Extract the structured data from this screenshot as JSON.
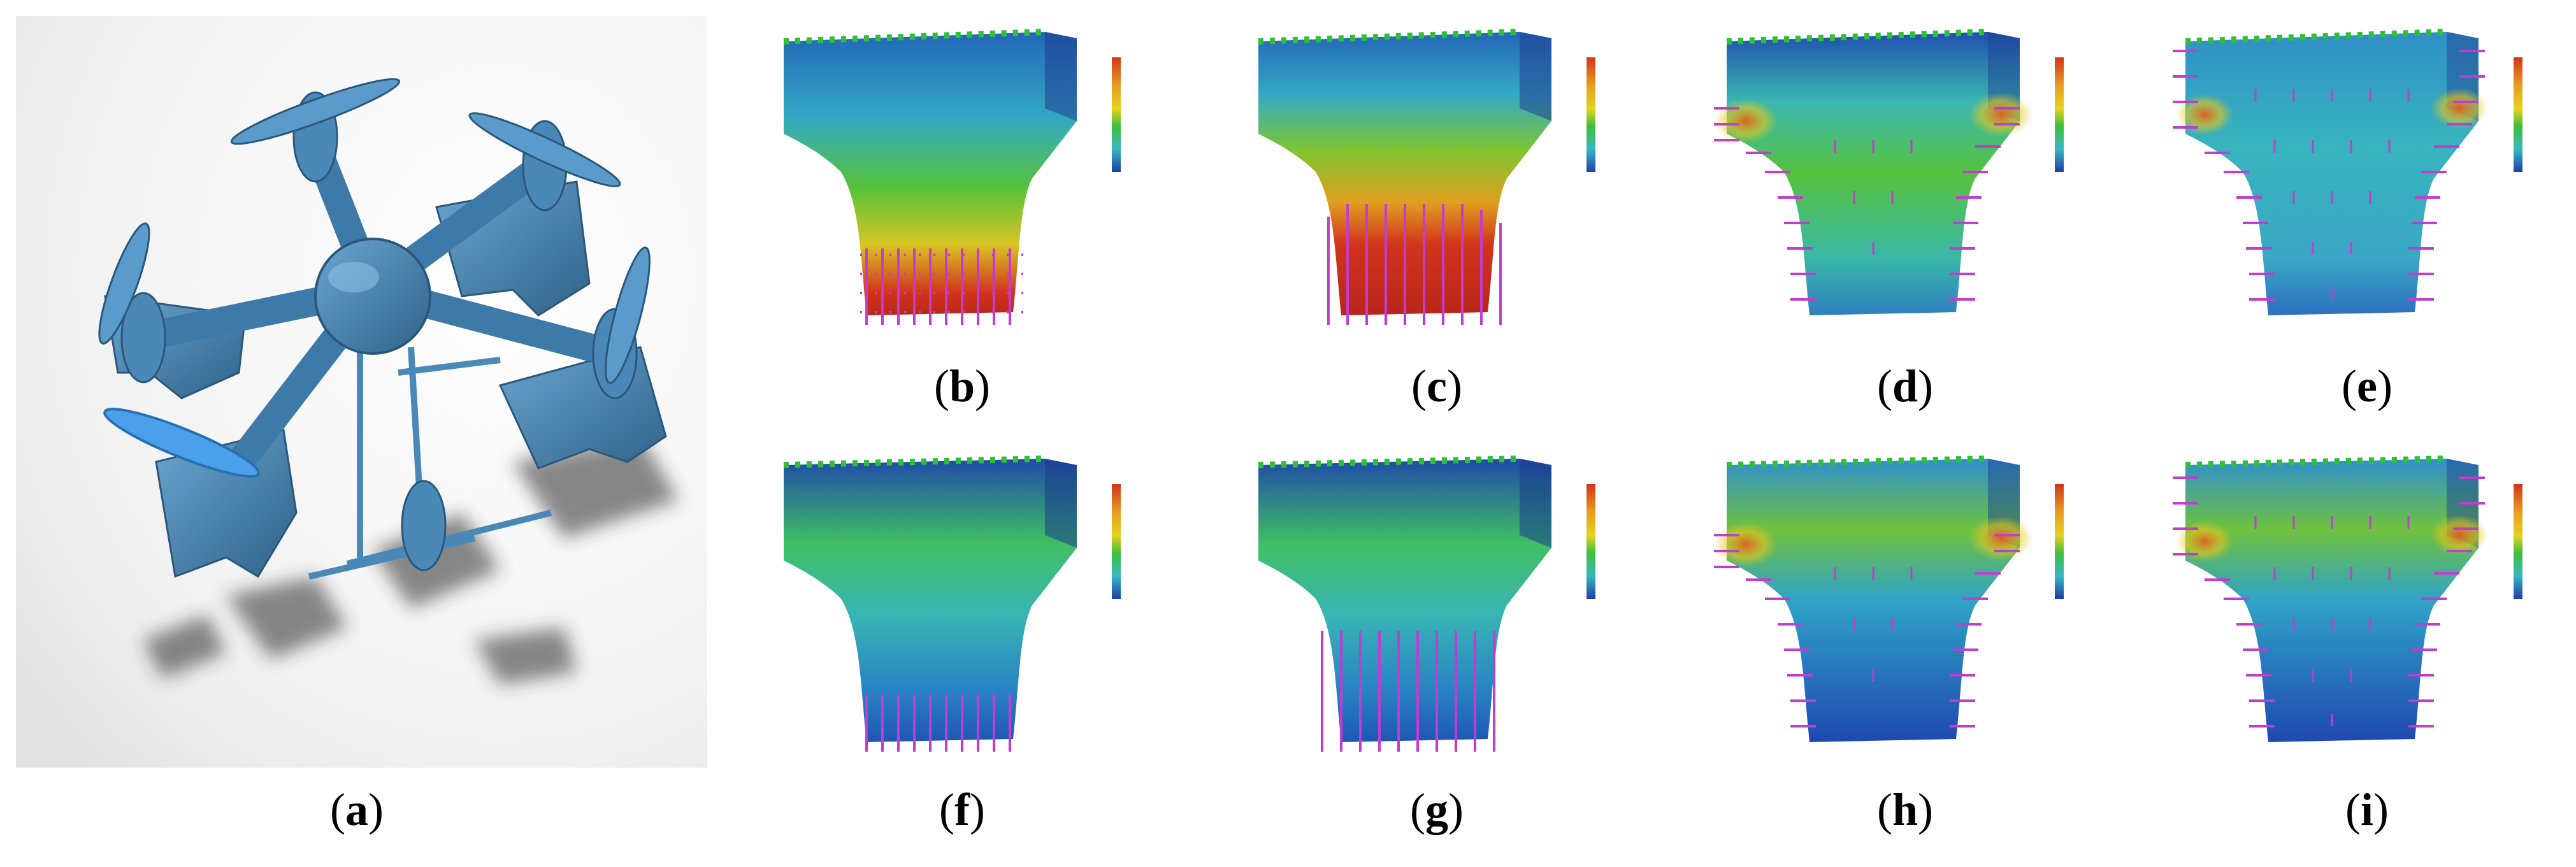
{
  "figure": {
    "panels": [
      {
        "id": "a",
        "open": "(",
        "letter": "a",
        "close": ")",
        "kind": "cad-model"
      },
      {
        "id": "b",
        "open": "(",
        "letter": "b",
        "close": ")",
        "kind": "fea-bottom-load",
        "scale": "warm-tip",
        "arrows": "bottom"
      },
      {
        "id": "c",
        "open": "(",
        "letter": "c",
        "close": ")",
        "kind": "fea-bottom-load",
        "scale": "warm-tip-large",
        "arrows": "lower-half"
      },
      {
        "id": "d",
        "open": "(",
        "letter": "d",
        "close": ")",
        "kind": "fea-side-load",
        "scale": "green-body",
        "arrows": "sides"
      },
      {
        "id": "e",
        "open": "(",
        "letter": "e",
        "close": ")",
        "kind": "fea-side-load",
        "scale": "cyan-body",
        "arrows": "all"
      },
      {
        "id": "f",
        "open": "(",
        "letter": "f",
        "close": ")",
        "kind": "fea-bottom-load",
        "scale": "cool-green-top",
        "arrows": "bottom"
      },
      {
        "id": "g",
        "open": "(",
        "letter": "g",
        "close": ")",
        "kind": "fea-bottom-load",
        "scale": "cool-green-top",
        "arrows": "lower-half"
      },
      {
        "id": "h",
        "open": "(",
        "letter": "h",
        "close": ")",
        "kind": "fea-side-load",
        "scale": "cool-shoulders",
        "arrows": "sides"
      },
      {
        "id": "i",
        "open": "(",
        "letter": "i",
        "close": ")",
        "kind": "fea-side-load",
        "scale": "cool-shoulders-green",
        "arrows": "all"
      }
    ],
    "colors": {
      "model_blue": "#4a88b8",
      "model_dark": "#2f6289",
      "arrow_magenta": "#c23ccf",
      "fixture_green": "#35c23a",
      "stress_red": "#d2341c",
      "stress_yellow": "#e6d21e",
      "stress_green": "#3fbf3a",
      "stress_cyan": "#35b8c2",
      "stress_blue": "#1f3fa6"
    }
  }
}
